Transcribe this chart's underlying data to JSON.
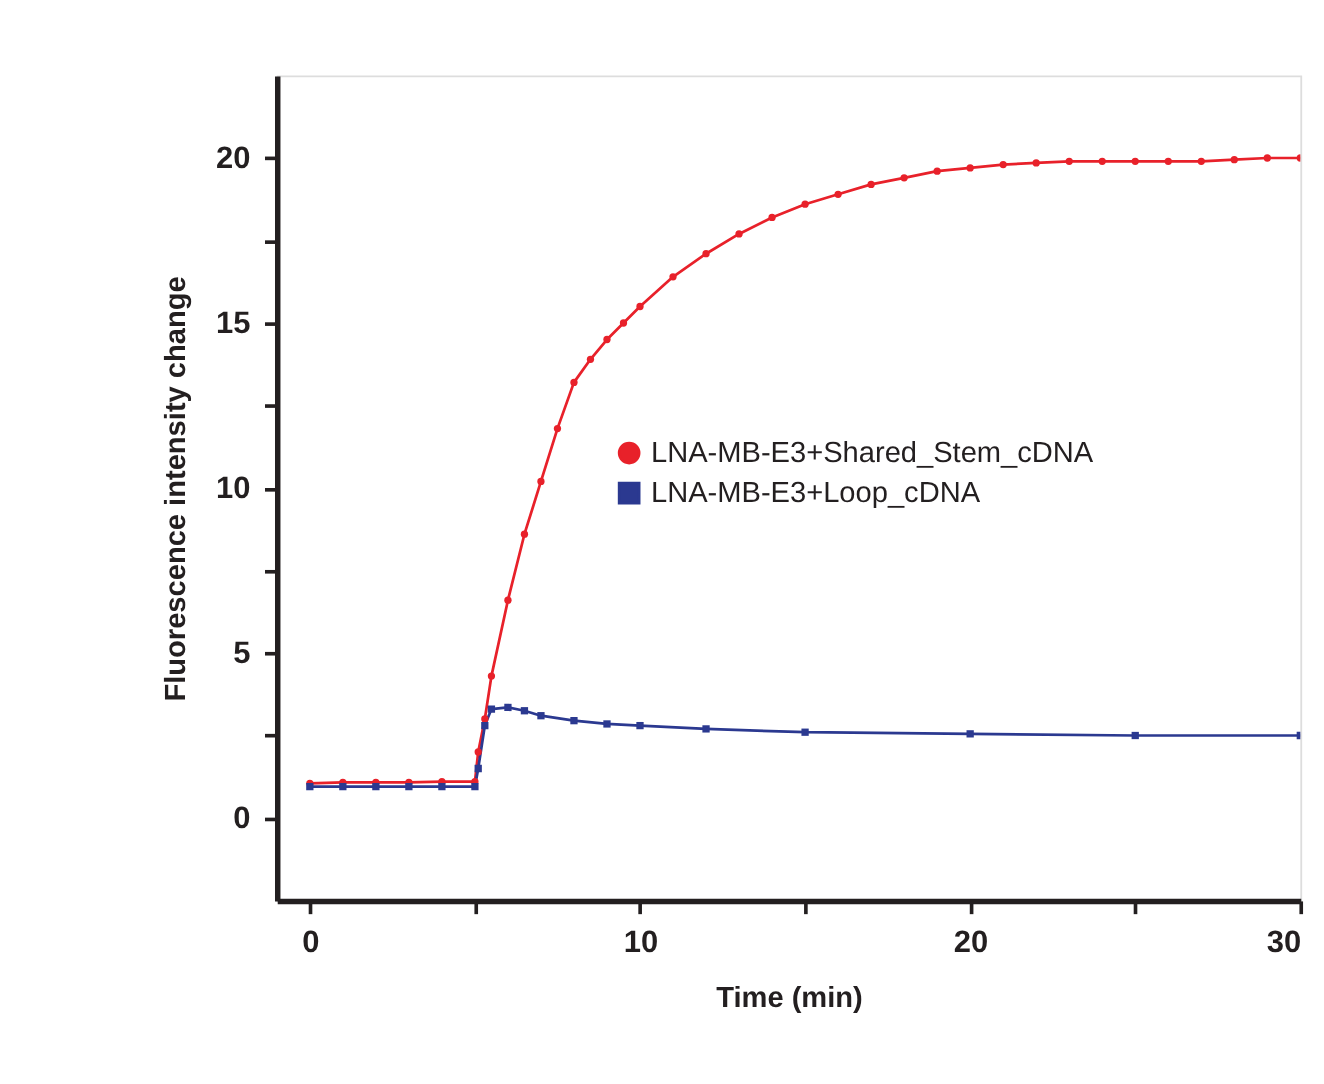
{
  "chart_data": {
    "type": "line",
    "xlabel": "Time (min)",
    "ylabel": "Fluorescence intensity change",
    "xlim": [
      -1,
      30
    ],
    "ylim": [
      -2.5,
      22.5
    ],
    "xticks": [
      0,
      {
        "value": 5,
        "label": null
      },
      10,
      {
        "value": 15,
        "label": null
      },
      20,
      {
        "value": 25,
        "label": null
      },
      30
    ],
    "yticks": [
      0,
      {
        "value": 2.5,
        "label": null
      },
      5,
      {
        "value": 7.5,
        "label": null
      },
      10,
      {
        "value": 12.5,
        "label": null
      },
      15,
      {
        "value": 17.5,
        "label": null
      },
      20
    ],
    "legend": "right",
    "grid": false,
    "series": [
      {
        "name": "LNA-MB-E3+Shared_Stem_cDNA",
        "color": "#e8212a",
        "marker": "circle",
        "x": [
          0,
          1,
          2,
          3,
          4,
          5,
          5.1,
          5.3,
          5.5,
          6,
          6.5,
          7,
          7.5,
          8,
          8.5,
          9,
          9.5,
          10,
          11,
          12,
          13,
          14,
          15,
          16,
          17,
          18,
          19,
          20,
          21,
          22,
          23,
          24,
          25,
          26,
          27,
          28,
          29,
          30
        ],
        "values": [
          1.05,
          1.08,
          1.08,
          1.08,
          1.1,
          1.1,
          2.0,
          3.0,
          4.3,
          6.6,
          8.6,
          10.2,
          11.8,
          13.2,
          13.9,
          14.5,
          15.0,
          15.5,
          16.4,
          17.1,
          17.7,
          18.2,
          18.6,
          18.9,
          19.2,
          19.4,
          19.6,
          19.7,
          19.8,
          19.85,
          19.9,
          19.9,
          19.9,
          19.9,
          19.9,
          19.95,
          20.0,
          20.0
        ]
      },
      {
        "name": "LNA-MB-E3+Loop_cDNA",
        "color": "#2b3990",
        "marker": "square",
        "x": [
          0,
          1,
          2,
          3,
          4,
          5,
          5.1,
          5.3,
          5.5,
          6,
          6.5,
          7,
          8,
          9,
          10,
          12,
          15,
          20,
          25,
          30
        ],
        "values": [
          0.95,
          0.95,
          0.95,
          0.95,
          0.95,
          0.95,
          1.5,
          2.8,
          3.3,
          3.35,
          3.25,
          3.1,
          2.95,
          2.85,
          2.8,
          2.7,
          2.6,
          2.55,
          2.5,
          2.5
        ]
      }
    ]
  }
}
